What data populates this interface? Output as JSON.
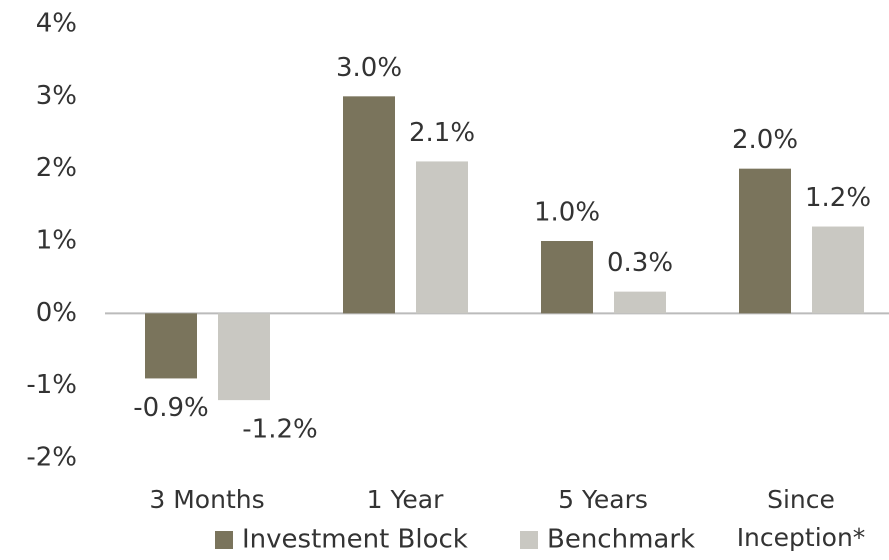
{
  "chart_data": {
    "type": "bar",
    "categories": [
      "3 Months",
      "1 Year",
      "5 Years",
      "Since Inception*"
    ],
    "series": [
      {
        "name": "Investment Block",
        "color": "#7a745c",
        "values": [
          -0.9,
          3.0,
          1.0,
          2.0
        ],
        "value_labels": [
          "-0.9%",
          "3.0%",
          "1.0%",
          "2.0%"
        ]
      },
      {
        "name": "Benchmark",
        "color": "#c9c8c2",
        "values": [
          -1.2,
          2.1,
          0.3,
          1.2
        ],
        "value_labels": [
          "-1.2%",
          "2.1%",
          "0.3%",
          "1.2%"
        ]
      }
    ],
    "ylim": [
      -2,
      4
    ],
    "yticks": [
      {
        "value": -2,
        "label": "-2%"
      },
      {
        "value": -1,
        "label": "-1%"
      },
      {
        "value": 0,
        "label": "0%"
      },
      {
        "value": 1,
        "label": "1%"
      },
      {
        "value": 2,
        "label": "2%"
      },
      {
        "value": 3,
        "label": "3%"
      },
      {
        "value": 4,
        "label": "4%"
      }
    ],
    "grid": false,
    "legend": "bottom"
  }
}
